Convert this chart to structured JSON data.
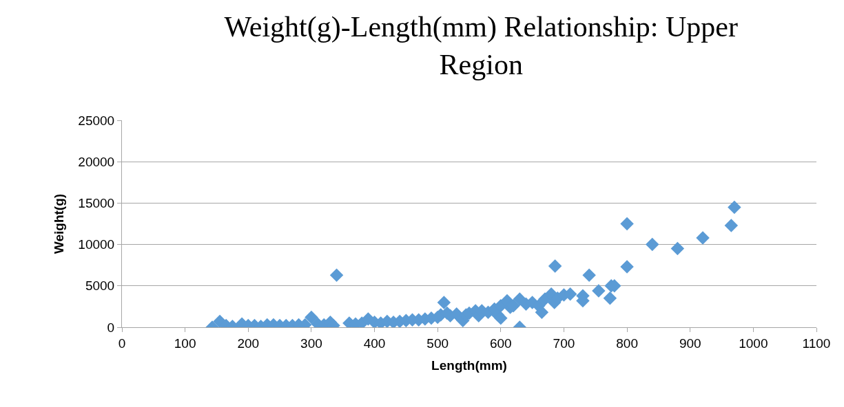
{
  "chart_data": {
    "type": "scatter",
    "title": "Weight(g)-Length(mm) Relationship: Upper Region",
    "xlabel": "Length(mm)",
    "ylabel": "Weight(g)",
    "x": [
      143,
      155,
      165,
      175,
      190,
      200,
      210,
      220,
      230,
      240,
      250,
      260,
      270,
      280,
      290,
      300,
      310,
      320,
      330,
      335,
      340,
      360,
      370,
      380,
      390,
      400,
      410,
      420,
      430,
      440,
      450,
      460,
      470,
      480,
      490,
      500,
      505,
      510,
      515,
      520,
      530,
      540,
      545,
      550,
      560,
      565,
      570,
      580,
      590,
      595,
      600,
      600,
      610,
      615,
      620,
      630,
      630,
      640,
      650,
      660,
      665,
      670,
      680,
      685,
      686,
      690,
      700,
      710,
      730,
      730,
      740,
      755,
      773,
      775,
      780,
      800,
      800,
      840,
      880,
      920,
      965,
      970
    ],
    "series": [
      {
        "color": "#5b9bd5",
        "values": [
          0,
          700,
          200,
          100,
          400,
          200,
          200,
          100,
          300,
          300,
          200,
          200,
          200,
          300,
          300,
          1200,
          400,
          300,
          600,
          200,
          6300,
          500,
          400,
          500,
          1000,
          600,
          500,
          700,
          600,
          700,
          800,
          900,
          900,
          1000,
          1100,
          1200,
          1500,
          3000,
          1700,
          1400,
          1600,
          800,
          1500,
          1700,
          2000,
          1400,
          2000,
          1800,
          2200,
          1500,
          1100,
          2600,
          3200,
          2400,
          2600,
          3400,
          0,
          2800,
          3000,
          2600,
          1800,
          3400,
          4000,
          3000,
          7400,
          3500,
          3900,
          4000,
          3800,
          3200,
          6300,
          4400,
          3500,
          5000,
          5000,
          12500,
          7300,
          10000,
          9500,
          10800,
          12300,
          14500
        ]
      }
    ],
    "xlim": [
      0,
      1100
    ],
    "xticks": [
      0,
      100,
      200,
      300,
      400,
      500,
      600,
      700,
      800,
      900,
      1000,
      1100
    ],
    "ylim": [
      0,
      25000
    ],
    "yticks": [
      0,
      5000,
      10000,
      15000,
      20000,
      25000
    ],
    "grid": "y",
    "marker": "diamond",
    "legend": false
  }
}
